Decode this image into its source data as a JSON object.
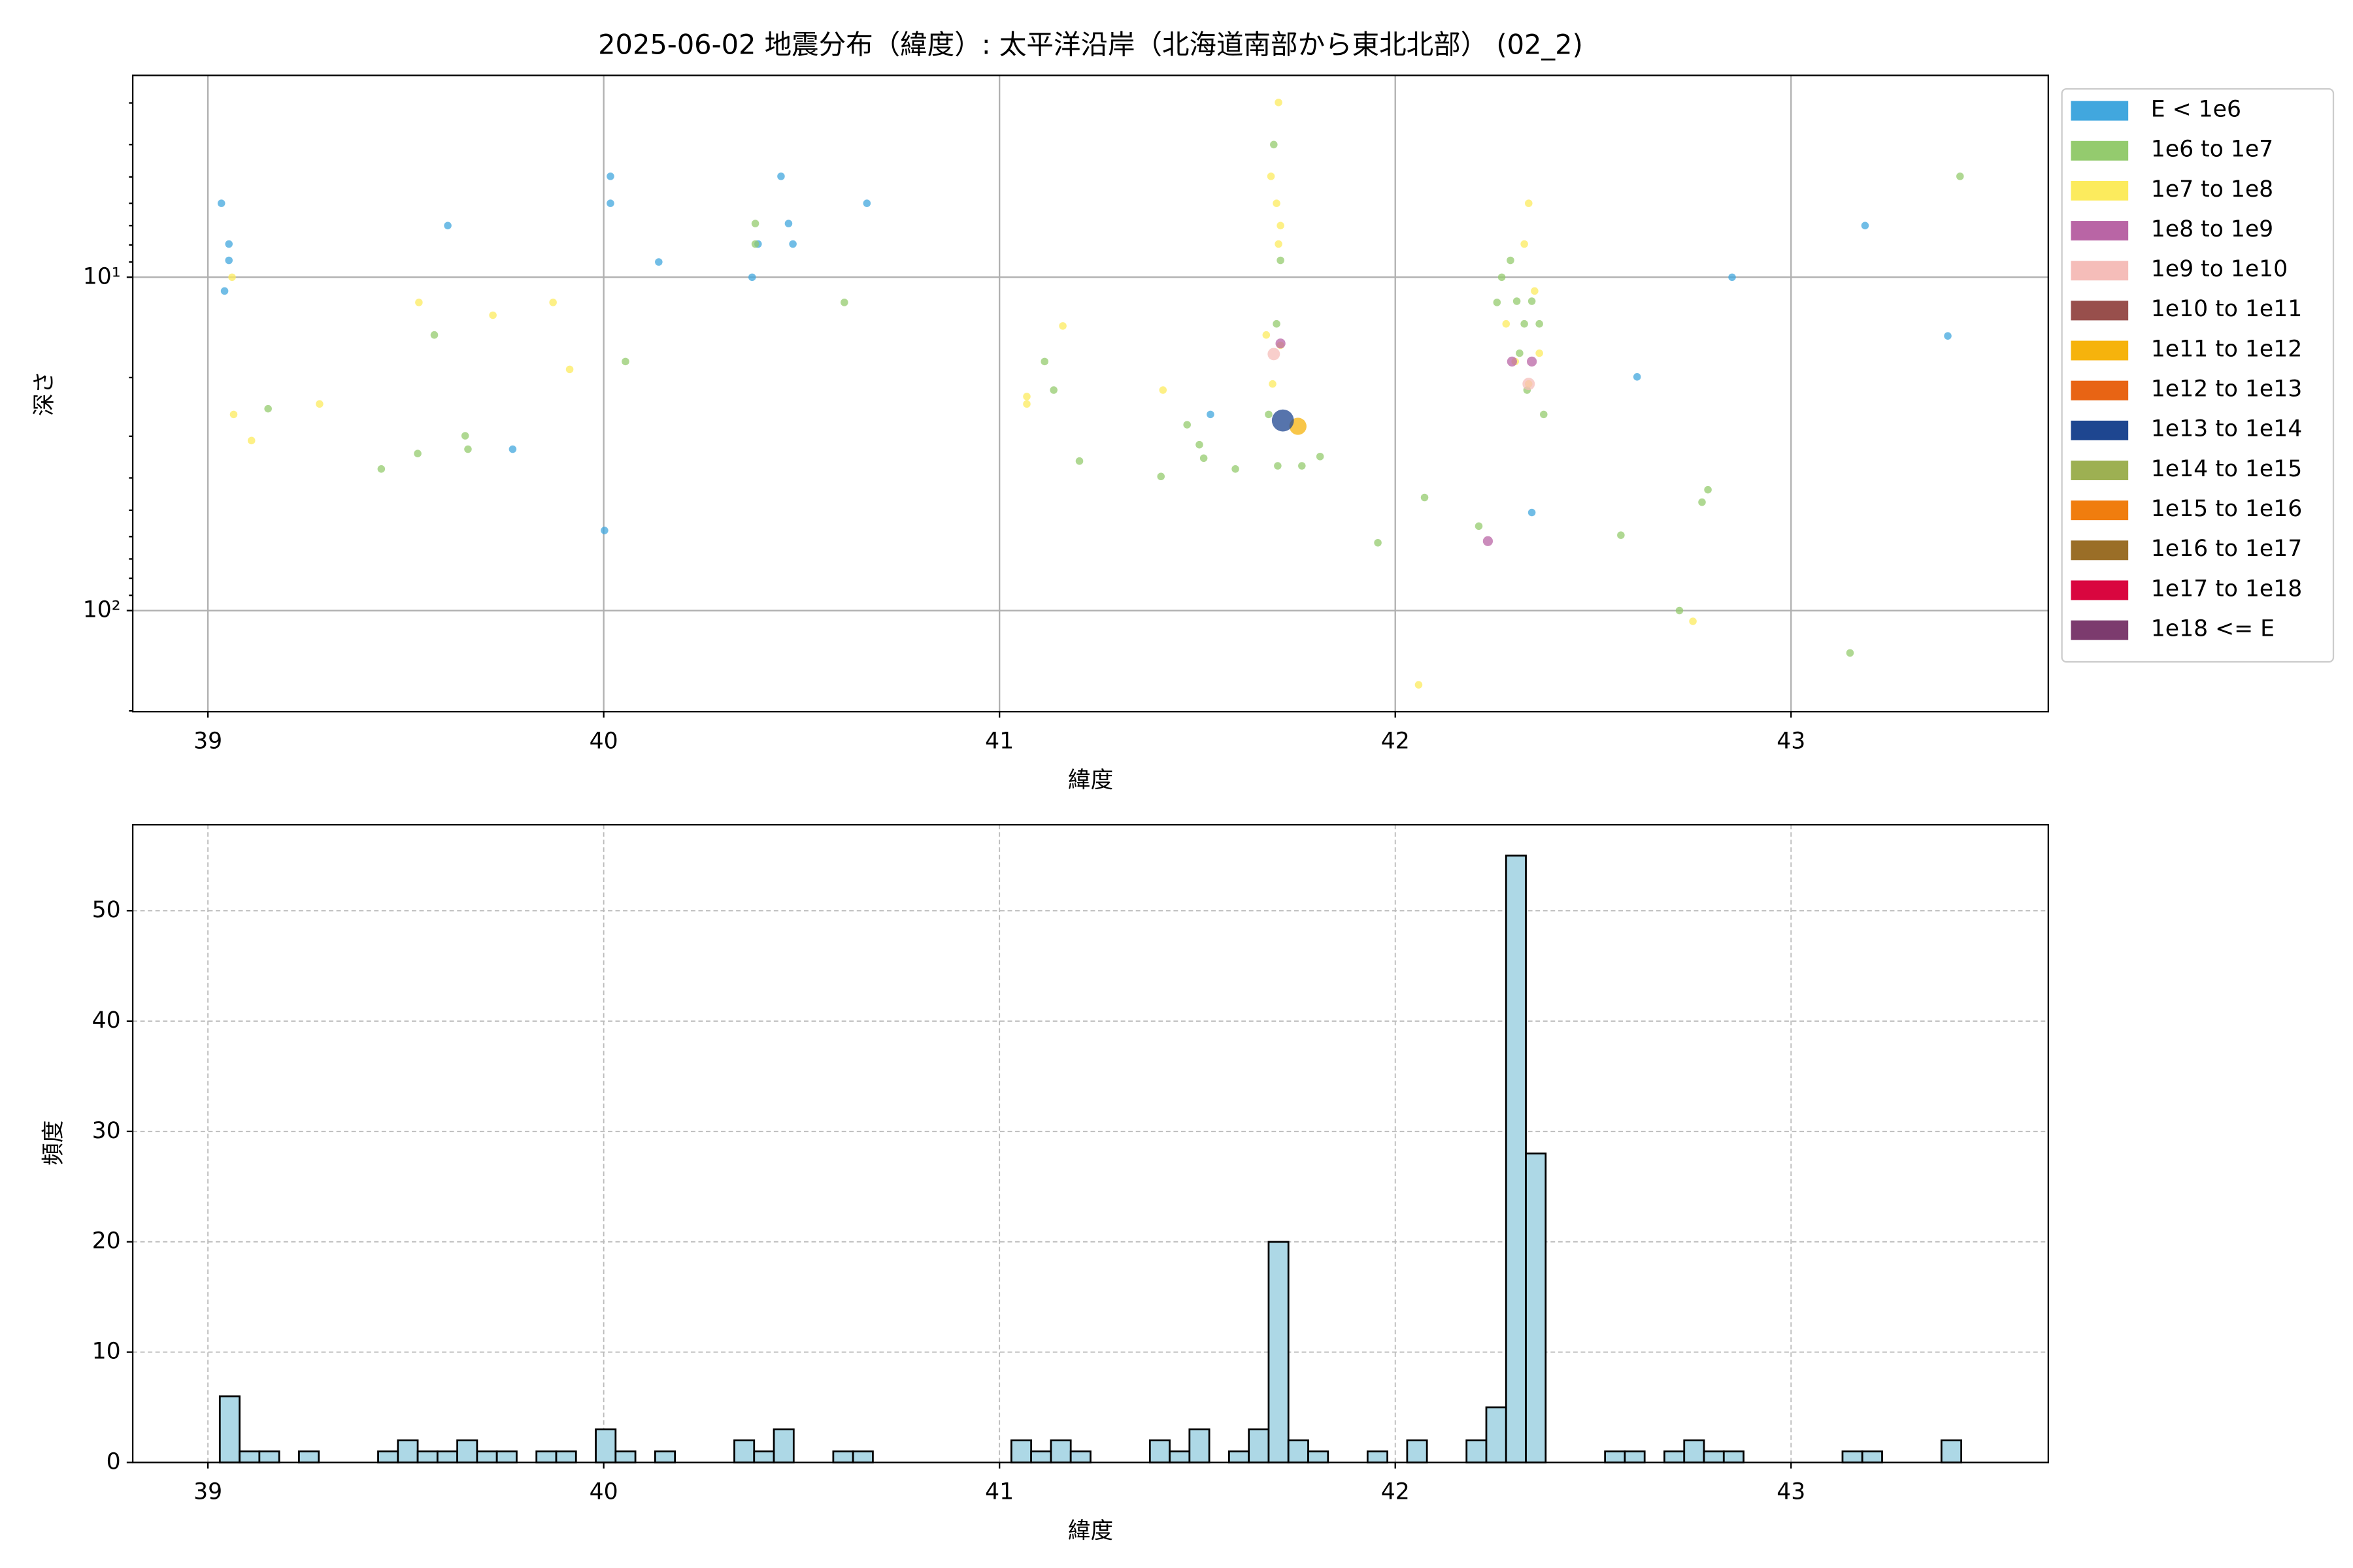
{
  "chart_data": [
    {
      "type": "scatter",
      "title": "2025-06-02 地震分布（緯度）: 太平洋沿岸（北海道南部から東北北部） (02_2)",
      "xlabel": "緯度",
      "ylabel": "深さ",
      "yscale": "log",
      "y_inverted": true,
      "grid": true,
      "legend": "outside-right",
      "xlim": [
        38.81,
        43.65
      ],
      "xticks": [
        39,
        40,
        41,
        42,
        43
      ],
      "ylim": [
        2.48,
        201
      ],
      "yticks": [
        {
          "value": 10,
          "label": "10¹"
        },
        {
          "value": 100,
          "label": "10²"
        }
      ],
      "yminorticks": [
        3,
        4,
        5,
        6,
        7,
        8,
        9,
        20,
        30,
        40,
        50,
        60,
        70,
        80,
        90,
        200
      ],
      "series": [
        {
          "name": "E < 1e6",
          "color": "#41a7de",
          "x": [
            39.034,
            39.053,
            39.053,
            39.042,
            39.606,
            40.017,
            40.017,
            40.139,
            40.375,
            40.39,
            40.448,
            40.467,
            40.478,
            40.665,
            39.77,
            40.002,
            41.533,
            42.611,
            42.851,
            43.187,
            43.396,
            42.345
          ],
          "y": [
            6.0,
            7.95,
            8.9,
            11,
            7.0,
            4.98,
            6.0,
            9.0,
            10,
            7.95,
            4.98,
            6.9,
            7.95,
            6.0,
            32.8,
            57.5,
            25.8,
            19.9,
            10,
            7.0,
            15.0,
            50.8
          ]
        },
        {
          "name": "1e6 to 1e7",
          "color": "#94cb6e",
          "x": [
            39.152,
            39.438,
            39.53,
            39.572,
            39.65,
            39.657,
            40.055,
            40.383,
            40.383,
            40.608,
            41.114,
            41.137,
            41.202,
            41.408,
            41.474,
            41.505,
            41.516,
            41.596,
            41.68,
            41.703,
            41.764,
            41.81,
            41.693,
            41.7,
            41.71,
            41.956,
            42.074,
            42.211,
            42.57,
            42.718,
            42.775,
            42.79,
            43.149,
            43.427,
            42.269,
            42.291,
            42.307,
            42.326,
            42.345,
            42.364,
            42.333,
            42.375,
            42.257,
            42.314
          ],
          "y": [
            24.8,
            37.6,
            33.8,
            14.9,
            29.9,
            32.8,
            17.9,
            6.9,
            7.95,
            11.9,
            17.9,
            21.8,
            35.6,
            39.6,
            27.7,
            31.8,
            34.9,
            37.6,
            25.8,
            36.8,
            36.8,
            34.5,
            4.0,
            13.8,
            8.9,
            62.6,
            45.8,
            55.8,
            59.4,
            100,
            47.3,
            43.4,
            134,
            4.98,
            10,
            8.9,
            11.8,
            13.8,
            11.8,
            13.8,
            21.8,
            25.8,
            11.9,
            16.9
          ]
        },
        {
          "name": "1e7 to 1e8",
          "color": "#fceb5d",
          "x": [
            39.061,
            39.065,
            39.11,
            39.282,
            39.533,
            39.72,
            39.872,
            39.914,
            41.069,
            41.069,
            41.16,
            41.413,
            41.705,
            41.686,
            41.7,
            41.71,
            41.705,
            41.674,
            41.69,
            41.71,
            42.059,
            42.752,
            42.337,
            42.326,
            42.28,
            42.303,
            42.337,
            42.364,
            42.352
          ],
          "y": [
            10,
            25.8,
            30.9,
            24,
            11.9,
            13,
            11.9,
            18.9,
            22.8,
            24,
            14,
            21.8,
            2.99,
            4.98,
            6.0,
            7.0,
            7.95,
            14.9,
            20.9,
            16,
            167,
            107.7,
            6.0,
            7.95,
            13.8,
            17.9,
            20.9,
            16.9,
            11
          ]
        },
        {
          "name": "1e8 to 1e9",
          "color": "#b965a5",
          "x": [
            41.71,
            42.295,
            42.345,
            42.234
          ],
          "y": [
            15.8,
            17.9,
            17.9,
            61.9
          ]
        },
        {
          "name": "1e9 to 1e10",
          "color": "#f5bdb9",
          "x": [
            41.693,
            42.337
          ],
          "y": [
            17.0,
            20.9
          ]
        },
        {
          "name": "1e10 to 1e11",
          "color": "#984f4c",
          "x": [],
          "y": []
        },
        {
          "name": "1e11 to 1e12",
          "color": "#f6b30c",
          "x": [
            41.754
          ],
          "y": [
            28
          ]
        },
        {
          "name": "1e12 to 1e13",
          "color": "#e86414",
          "x": [],
          "y": []
        },
        {
          "name": "1e13 to 1e14",
          "color": "#1e4690",
          "x": [
            41.716
          ],
          "y": [
            26.9
          ]
        },
        {
          "name": "1e14 to 1e15",
          "color": "#9db052",
          "x": [],
          "y": []
        },
        {
          "name": "1e15 to 1e16",
          "color": "#f07d0e",
          "x": [],
          "y": []
        },
        {
          "name": "1e16 to 1e17",
          "color": "#9a6e27",
          "x": [],
          "y": []
        },
        {
          "name": "1e17 to 1e18",
          "color": "#d9063f",
          "x": [],
          "y": []
        },
        {
          "name": "1e18 <= E",
          "color": "#7c3b6e",
          "x": [],
          "y": []
        }
      ]
    },
    {
      "type": "histogram",
      "xlabel": "緯度",
      "ylabel": "頻度",
      "color": "#add8e6",
      "edgecolor": "#000000",
      "grid": true,
      "xlim": [
        38.81,
        43.65
      ],
      "xticks": [
        39,
        40,
        41,
        42,
        43
      ],
      "ylim": [
        0,
        57.8
      ],
      "yticks": [
        0,
        10,
        20,
        30,
        40,
        50
      ],
      "bins": [
        39.03,
        39.08,
        39.13,
        39.18,
        39.23,
        39.28,
        39.33,
        39.38,
        39.43,
        39.48,
        39.53,
        39.58,
        39.63,
        39.68,
        39.73,
        39.78,
        39.83,
        39.88,
        39.93,
        39.98,
        40.03,
        40.08,
        40.13,
        40.18,
        40.23,
        40.28,
        40.33,
        40.38,
        40.43,
        40.48,
        40.53,
        40.58,
        40.63,
        40.68,
        40.73,
        40.78,
        40.83,
        40.88,
        40.93,
        40.98,
        41.03,
        41.08,
        41.13,
        41.18,
        41.23,
        41.28,
        41.33,
        41.38,
        41.43,
        41.48,
        41.53,
        41.58,
        41.63,
        41.68,
        41.73,
        41.78,
        41.83,
        41.88,
        41.93,
        41.98,
        42.03,
        42.08,
        42.13,
        42.18,
        42.23,
        42.28,
        42.33,
        42.38,
        42.43,
        42.48,
        42.53,
        42.58,
        42.63,
        42.68,
        42.73,
        42.78,
        42.83,
        42.88,
        42.93,
        42.98,
        43.03,
        43.08,
        43.13,
        43.18,
        43.23,
        43.28,
        43.33,
        43.38,
        43.43
      ],
      "values": [
        6,
        1,
        1,
        0,
        1,
        0,
        0,
        0,
        1,
        2,
        1,
        1,
        2,
        1,
        1,
        0,
        1,
        1,
        0,
        3,
        1,
        0,
        1,
        0,
        0,
        0,
        2,
        1,
        3,
        0,
        0,
        1,
        1,
        0,
        0,
        0,
        0,
        0,
        0,
        0,
        2,
        1,
        2,
        1,
        0,
        0,
        0,
        2,
        1,
        3,
        0,
        1,
        3,
        20,
        2,
        1,
        0,
        0,
        1,
        0,
        2,
        0,
        0,
        2,
        5,
        55,
        28,
        0,
        0,
        0,
        1,
        1,
        0,
        1,
        2,
        1,
        1,
        0,
        0,
        0,
        0,
        0,
        1,
        1,
        0,
        0,
        0,
        2
      ]
    }
  ]
}
